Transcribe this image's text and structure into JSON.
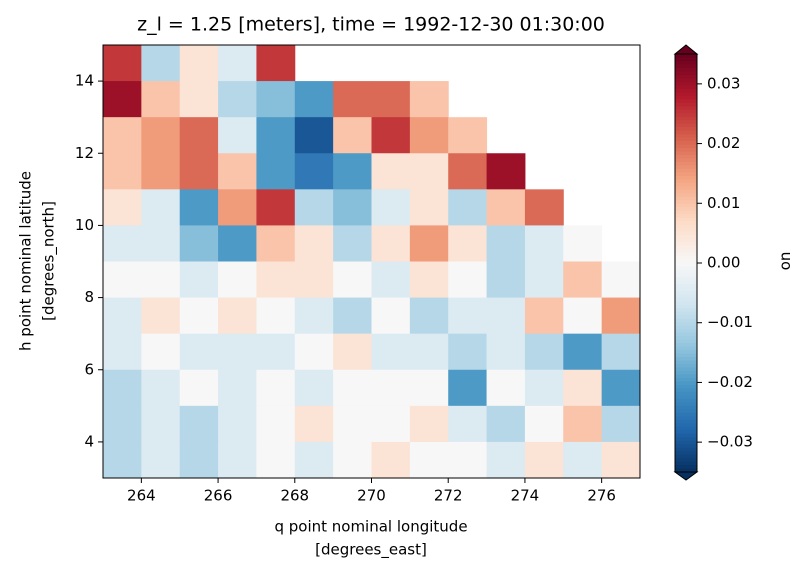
{
  "chart_data": {
    "type": "heatmap",
    "title": "z_l = 1.25 [meters], time = 1992-12-30 01:30:00",
    "x_label": [
      "q point nominal longitude",
      "[degrees_east]"
    ],
    "y_label": [
      "h point nominal latitude",
      "[degrees_north]"
    ],
    "colorbar_label": "uo",
    "cmap": "RdBu_r",
    "extend": "both",
    "x": [
      263.5,
      264.5,
      265.5,
      266.5,
      267.5,
      268.5,
      269.5,
      270.5,
      271.5,
      272.5,
      273.5,
      274.5,
      275.5,
      276.5
    ],
    "y": [
      14.5,
      13.5,
      12.5,
      11.5,
      10.5,
      9.5,
      8.5,
      7.5,
      6.5,
      5.5,
      4.5,
      3.5
    ],
    "values": [
      [
        0.025,
        -0.01,
        0.005,
        -0.005,
        0.025,
        null,
        null,
        null,
        null,
        null,
        null,
        null,
        null,
        null
      ],
      [
        0.03,
        0.01,
        0.005,
        -0.01,
        -0.015,
        -0.02,
        0.02,
        0.02,
        0.01,
        null,
        null,
        null,
        null,
        null
      ],
      [
        0.01,
        0.015,
        0.02,
        -0.005,
        -0.02,
        -0.03,
        0.01,
        0.025,
        0.015,
        0.01,
        null,
        null,
        null,
        null
      ],
      [
        0.01,
        0.015,
        0.02,
        0.01,
        -0.02,
        -0.025,
        -0.02,
        0.005,
        0.005,
        0.02,
        0.03,
        null,
        null,
        null
      ],
      [
        0.005,
        -0.005,
        -0.02,
        0.015,
        0.025,
        -0.01,
        -0.015,
        -0.005,
        0.005,
        -0.01,
        0.01,
        0.02,
        null,
        null
      ],
      [
        -0.005,
        -0.005,
        -0.015,
        -0.02,
        0.01,
        0.005,
        -0.01,
        0.005,
        0.015,
        0.005,
        -0.01,
        -0.005,
        0,
        null
      ],
      [
        0,
        0,
        -0.005,
        0,
        0.005,
        0.005,
        0,
        -0.005,
        0.005,
        0,
        -0.01,
        -0.005,
        0.01,
        0
      ],
      [
        -0.005,
        0.005,
        0,
        0.005,
        0,
        -0.005,
        -0.01,
        0,
        -0.01,
        -0.005,
        -0.005,
        0.01,
        0,
        0.015
      ],
      [
        -0.005,
        0,
        -0.005,
        -0.005,
        -0.005,
        0,
        0.005,
        -0.005,
        -0.005,
        -0.01,
        -0.005,
        -0.01,
        -0.02,
        -0.01
      ],
      [
        -0.01,
        -0.005,
        0,
        -0.005,
        0,
        -0.005,
        0,
        0,
        0,
        -0.02,
        0,
        -0.005,
        0.005,
        -0.02
      ],
      [
        -0.01,
        -0.005,
        -0.01,
        -0.005,
        0,
        0.005,
        0,
        0,
        0.005,
        -0.005,
        -0.01,
        0,
        0.01,
        -0.01
      ],
      [
        -0.01,
        -0.005,
        -0.01,
        -0.005,
        0,
        -0.005,
        0,
        0.005,
        0,
        0,
        -0.005,
        0.005,
        -0.005,
        0.005
      ]
    ],
    "xlim": [
      263,
      277
    ],
    "xticks": [
      264,
      266,
      268,
      270,
      272,
      274,
      276
    ],
    "ylim": [
      3,
      15
    ],
    "yticks": [
      4,
      6,
      8,
      10,
      12,
      14
    ],
    "clim": [
      -0.035,
      0.035
    ],
    "cticks": [
      {
        "value": -0.03,
        "label": "−0.03"
      },
      {
        "value": -0.02,
        "label": "−0.02"
      },
      {
        "value": -0.01,
        "label": "−0.01"
      },
      {
        "value": 0,
        "label": "0.00"
      },
      0.01,
      0.02,
      0.03
    ]
  }
}
